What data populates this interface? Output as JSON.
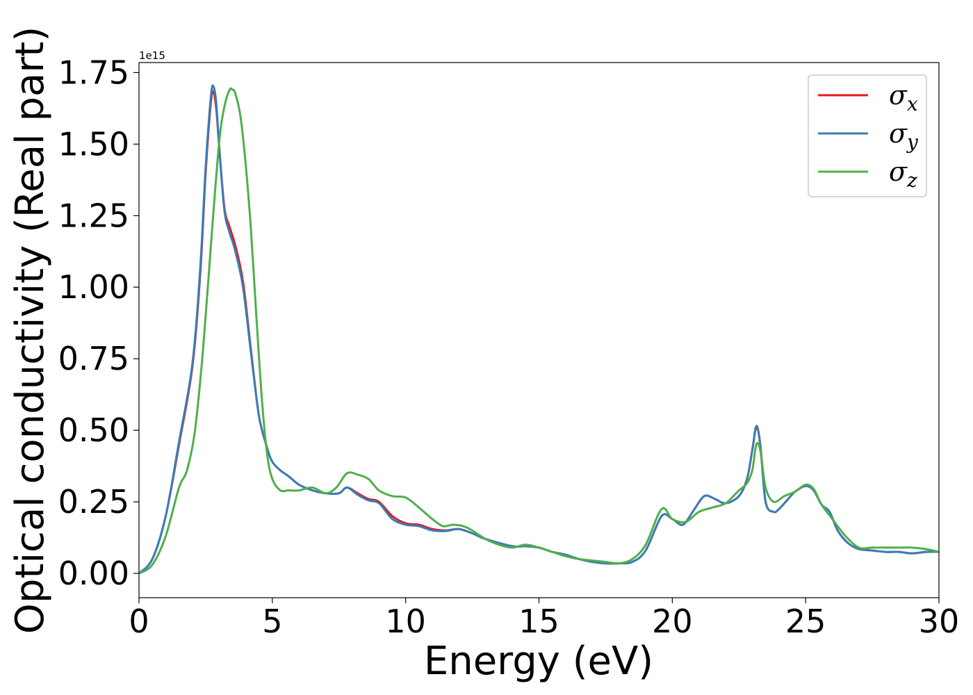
{
  "chart_data": {
    "type": "line",
    "xlabel": "Energy (eV)",
    "ylabel": "Optical conductivity (Real part)",
    "y_offset_label": "1e15",
    "xlim": [
      0,
      30
    ],
    "ylim": [
      -0.085,
      1.785
    ],
    "x_ticks": [
      0,
      5,
      10,
      15,
      20,
      25,
      30
    ],
    "x_tick_labels": [
      "0",
      "5",
      "10",
      "15",
      "20",
      "25",
      "30"
    ],
    "y_ticks": [
      0,
      0.25,
      0.5,
      0.75,
      1.0,
      1.25,
      1.5,
      1.75
    ],
    "y_tick_labels": [
      "0.00",
      "0.25",
      "0.50",
      "0.75",
      "1.00",
      "1.25",
      "1.50",
      "1.75"
    ],
    "grid": false,
    "legend_position": "top-right",
    "series": [
      {
        "name": "σx",
        "symbol": "σ",
        "subscript": "x",
        "color": "#e41a1c",
        "x": [
          0,
          0.5,
          1.0,
          1.5,
          2.0,
          2.3,
          2.5,
          2.7,
          2.8,
          2.9,
          3.0,
          3.2,
          3.4,
          3.6,
          3.9,
          4.2,
          4.5,
          4.8,
          5.0,
          5.3,
          5.6,
          6.0,
          6.5,
          7.0,
          7.5,
          7.8,
          8.2,
          8.6,
          9.0,
          9.5,
          10.0,
          10.5,
          11.0,
          11.5,
          12.0,
          12.5,
          13.0,
          14.0,
          14.5,
          15.0,
          15.5,
          16.0,
          16.5,
          17.0,
          17.5,
          18.0,
          18.5,
          19.0,
          19.6,
          20.0,
          20.4,
          20.8,
          21.2,
          21.6,
          22.0,
          22.5,
          22.8,
          23.0,
          23.15,
          23.3,
          23.5,
          23.8,
          24.0,
          24.3,
          24.6,
          25.0,
          25.3,
          25.6,
          25.9,
          26.2,
          26.6,
          27.0,
          27.5,
          28.0,
          28.5,
          29.0,
          29.5,
          30.0
        ],
        "values": [
          0.0,
          0.05,
          0.2,
          0.45,
          0.72,
          1.05,
          1.4,
          1.65,
          1.68,
          1.62,
          1.5,
          1.28,
          1.21,
          1.15,
          1.02,
          0.78,
          0.55,
          0.44,
          0.39,
          0.36,
          0.34,
          0.31,
          0.29,
          0.28,
          0.28,
          0.3,
          0.28,
          0.26,
          0.25,
          0.2,
          0.175,
          0.17,
          0.155,
          0.15,
          0.155,
          0.14,
          0.12,
          0.095,
          0.095,
          0.09,
          0.075,
          0.065,
          0.05,
          0.04,
          0.035,
          0.035,
          0.04,
          0.08,
          0.2,
          0.19,
          0.17,
          0.22,
          0.27,
          0.26,
          0.245,
          0.27,
          0.33,
          0.43,
          0.51,
          0.45,
          0.25,
          0.215,
          0.225,
          0.255,
          0.285,
          0.305,
          0.29,
          0.24,
          0.215,
          0.15,
          0.105,
          0.085,
          0.08,
          0.075,
          0.075,
          0.07,
          0.075,
          0.075
        ]
      },
      {
        "name": "σy",
        "symbol": "σ",
        "subscript": "y",
        "color": "#377eb8",
        "x": [
          0,
          0.5,
          1.0,
          1.5,
          2.0,
          2.3,
          2.5,
          2.7,
          2.8,
          2.9,
          3.0,
          3.2,
          3.4,
          3.6,
          3.9,
          4.2,
          4.5,
          4.8,
          5.0,
          5.3,
          5.6,
          6.0,
          6.5,
          7.0,
          7.5,
          7.8,
          8.2,
          8.6,
          9.0,
          9.5,
          10.0,
          10.5,
          11.0,
          11.5,
          12.0,
          12.5,
          13.0,
          14.0,
          14.5,
          15.0,
          15.5,
          16.0,
          16.5,
          17.0,
          17.5,
          18.0,
          18.5,
          19.0,
          19.6,
          20.0,
          20.4,
          20.8,
          21.2,
          21.6,
          22.0,
          22.5,
          22.8,
          23.0,
          23.15,
          23.3,
          23.5,
          23.8,
          24.0,
          24.3,
          24.6,
          25.0,
          25.3,
          25.6,
          25.9,
          26.2,
          26.6,
          27.0,
          27.5,
          28.0,
          28.5,
          29.0,
          29.5,
          30.0
        ],
        "values": [
          0.0,
          0.05,
          0.2,
          0.46,
          0.73,
          1.07,
          1.42,
          1.67,
          1.7,
          1.64,
          1.5,
          1.27,
          1.19,
          1.13,
          1.0,
          0.77,
          0.55,
          0.44,
          0.39,
          0.36,
          0.34,
          0.31,
          0.29,
          0.28,
          0.28,
          0.3,
          0.275,
          0.255,
          0.245,
          0.19,
          0.17,
          0.165,
          0.15,
          0.148,
          0.155,
          0.14,
          0.12,
          0.095,
          0.095,
          0.09,
          0.075,
          0.065,
          0.05,
          0.04,
          0.035,
          0.035,
          0.04,
          0.08,
          0.2,
          0.19,
          0.17,
          0.22,
          0.27,
          0.26,
          0.245,
          0.27,
          0.33,
          0.43,
          0.515,
          0.45,
          0.25,
          0.215,
          0.225,
          0.255,
          0.285,
          0.305,
          0.29,
          0.24,
          0.215,
          0.15,
          0.105,
          0.085,
          0.08,
          0.075,
          0.075,
          0.07,
          0.075,
          0.075
        ]
      },
      {
        "name": "σz",
        "symbol": "σ",
        "subscript": "z",
        "color": "#4daf4a",
        "x": [
          0,
          0.5,
          1.0,
          1.5,
          1.8,
          2.1,
          2.4,
          2.7,
          3.0,
          3.2,
          3.4,
          3.5,
          3.6,
          3.8,
          4.0,
          4.2,
          4.4,
          4.6,
          4.8,
          5.0,
          5.3,
          5.6,
          6.0,
          6.5,
          7.0,
          7.4,
          7.8,
          8.2,
          8.6,
          9.0,
          9.5,
          10.0,
          10.5,
          11.0,
          11.4,
          11.8,
          12.3,
          13.0,
          13.5,
          14.0,
          14.5,
          15.0,
          15.5,
          16.0,
          16.5,
          17.0,
          17.5,
          18.0,
          18.5,
          19.0,
          19.6,
          20.0,
          20.5,
          21.0,
          21.5,
          22.0,
          22.5,
          22.8,
          23.0,
          23.15,
          23.3,
          23.5,
          23.8,
          24.2,
          24.6,
          25.0,
          25.3,
          25.6,
          26.0,
          26.5,
          27.0,
          27.5,
          28.0,
          28.5,
          29.0,
          29.5,
          30.0
        ],
        "values": [
          0.0,
          0.03,
          0.13,
          0.3,
          0.36,
          0.5,
          0.78,
          1.15,
          1.5,
          1.63,
          1.69,
          1.69,
          1.68,
          1.6,
          1.43,
          1.2,
          0.9,
          0.62,
          0.42,
          0.33,
          0.29,
          0.29,
          0.29,
          0.3,
          0.28,
          0.3,
          0.35,
          0.345,
          0.33,
          0.29,
          0.27,
          0.265,
          0.23,
          0.19,
          0.165,
          0.17,
          0.16,
          0.12,
          0.1,
          0.09,
          0.1,
          0.09,
          0.075,
          0.06,
          0.05,
          0.045,
          0.04,
          0.035,
          0.05,
          0.1,
          0.225,
          0.19,
          0.18,
          0.215,
          0.23,
          0.245,
          0.29,
          0.315,
          0.36,
          0.45,
          0.43,
          0.3,
          0.25,
          0.27,
          0.285,
          0.31,
          0.295,
          0.24,
          0.19,
          0.13,
          0.09,
          0.09,
          0.09,
          0.09,
          0.09,
          0.085,
          0.075
        ]
      }
    ]
  }
}
